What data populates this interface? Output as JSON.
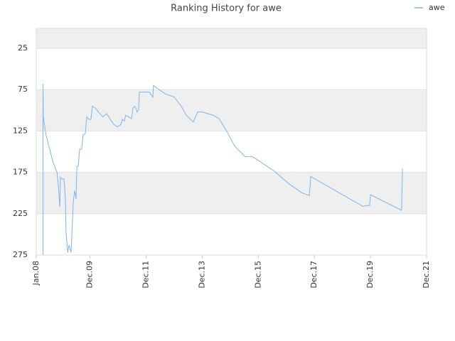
{
  "chart_data": {
    "type": "line",
    "title": "Ranking History for awe",
    "x": [
      2008.24,
      2008.24,
      2008.25,
      2008.35,
      2008.48,
      2008.61,
      2008.74,
      2008.79,
      2008.84,
      2008.86,
      2008.91,
      2008.99,
      2009.04,
      2009.06,
      2009.12,
      2009.17,
      2009.24,
      2009.27,
      2009.32,
      2009.37,
      2009.42,
      2009.45,
      2009.5,
      2009.55,
      2009.62,
      2009.67,
      2009.75,
      2009.8,
      2009.88,
      2009.95,
      2010,
      2010.13,
      2010.21,
      2010.38,
      2010.51,
      2010.64,
      2010.76,
      2010.89,
      2011.02,
      2011.07,
      2011.14,
      2011.19,
      2011.4,
      2011.45,
      2011.52,
      2011.6,
      2011.65,
      2011.68,
      2011.73,
      2012.03,
      2012.16,
      2012.18,
      2012.34,
      2012.59,
      2012.92,
      2013.17,
      2013.35,
      2013.6,
      2013.76,
      2013.93,
      2014.31,
      2014.52,
      2014.82,
      2015.07,
      2015.45,
      2015.71,
      2016.47,
      2016.98,
      2017.48,
      2017.74,
      2017.79,
      2019.64,
      2019.89,
      2019.92,
      2021.03,
      2021.06
    ],
    "series": [
      {
        "name": "awe",
        "color": "#7cb5ec",
        "values": [
          275,
          68,
          108,
          130,
          147,
          164,
          175,
          192,
          217,
          181,
          183,
          183,
          207,
          246,
          272,
          263,
          272,
          250,
          211,
          197,
          207,
          168,
          167,
          147,
          147,
          130,
          128,
          108,
          111,
          111,
          95,
          98,
          102,
          108,
          104,
          111,
          117,
          120,
          117,
          111,
          113,
          106,
          110,
          97,
          95,
          102,
          99,
          78,
          78,
          78,
          84,
          70,
          74,
          80,
          84,
          95,
          106,
          114,
          102,
          102,
          106,
          110,
          127,
          143,
          156,
          156,
          173,
          188,
          200,
          203,
          180,
          216,
          215,
          202,
          221,
          170
        ]
      }
    ],
    "xlim": [
      2008,
      2021.92
    ],
    "xticks": [
      {
        "value": 2008,
        "label": "Jan.08"
      },
      {
        "value": 2009.92,
        "label": "Dec.09"
      },
      {
        "value": 2011.92,
        "label": "Dec.11"
      },
      {
        "value": 2013.92,
        "label": "Dec.13"
      },
      {
        "value": 2015.92,
        "label": "Dec.15"
      },
      {
        "value": 2017.92,
        "label": "Dec.17"
      },
      {
        "value": 2019.92,
        "label": "Dec.19"
      },
      {
        "value": 2021.92,
        "label": "Dec.21"
      }
    ],
    "ylim": [
      275,
      1
    ],
    "yticks": [
      25,
      75,
      125,
      175,
      225,
      275
    ],
    "grid": true
  }
}
